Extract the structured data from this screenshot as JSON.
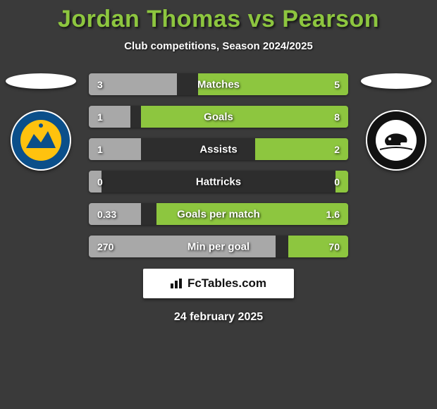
{
  "title": "Jordan Thomas vs Pearson",
  "subtitle": "Club competitions, Season 2024/2025",
  "colors": {
    "left_bar": "#a8a8a8",
    "right_bar": "#8dc63f",
    "row_bg": "#2d2d2d",
    "accent": "#8dc63f",
    "page_bg": "#3a3a3a",
    "text": "#ffffff"
  },
  "left_team_badge": {
    "outer": "#0b4f8a",
    "inner": "#ffc20e",
    "accent": "#0b4f8a"
  },
  "right_team_badge": {
    "outer": "#111111",
    "inner": "#ffffff",
    "accent": "#111111"
  },
  "stats": [
    {
      "label": "Matches",
      "left_val": "3",
      "right_val": "5",
      "left_pct": 34,
      "right_pct": 58
    },
    {
      "label": "Goals",
      "left_val": "1",
      "right_val": "8",
      "left_pct": 16,
      "right_pct": 80
    },
    {
      "label": "Assists",
      "left_val": "1",
      "right_val": "2",
      "left_pct": 20,
      "right_pct": 36
    },
    {
      "label": "Hattricks",
      "left_val": "0",
      "right_val": "0",
      "left_pct": 5,
      "right_pct": 5
    },
    {
      "label": "Goals per match",
      "left_val": "0.33",
      "right_val": "1.6",
      "left_pct": 20,
      "right_pct": 74
    },
    {
      "label": "Min per goal",
      "left_val": "270",
      "right_val": "70",
      "left_pct": 72,
      "right_pct": 23
    }
  ],
  "footer_brand": "FcTables.com",
  "footer_date": "24 february 2025"
}
